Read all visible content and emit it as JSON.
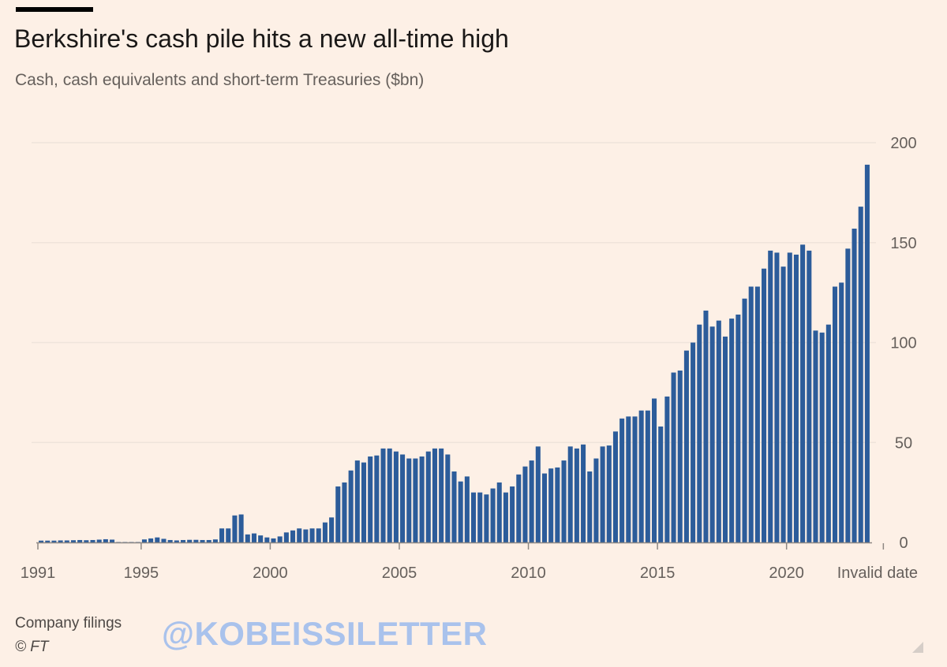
{
  "title": "Berkshire's cash pile hits a new all-time high",
  "subtitle": "Cash, cash equivalents and short-term Treasuries ($bn)",
  "footer": {
    "source": "Company filings",
    "credit": "© FT"
  },
  "watermark": "@KOBEISSILETTER",
  "colors": {
    "background": "#FDF0E6",
    "bar": "#2C5C9A",
    "grid": "#EFE4DB",
    "text": "#66605C"
  },
  "chart_data": {
    "type": "bar",
    "title": "Berkshire's cash pile hits a new all-time high",
    "subtitle": "Cash, cash equivalents and short-term Treasuries ($bn)",
    "xlabel": "",
    "ylabel": "",
    "y_axis_position": "right",
    "ylim": [
      0,
      200
    ],
    "yticks": [
      0,
      50,
      100,
      150,
      200
    ],
    "grid": true,
    "x_start": 1991,
    "x_step": 0.25,
    "x_ticks": [
      {
        "x": 1991,
        "label": "1991"
      },
      {
        "x": 1995,
        "label": "1995"
      },
      {
        "x": 2000,
        "label": "2000"
      },
      {
        "x": 2005,
        "label": "2005"
      },
      {
        "x": 2010,
        "label": "2010"
      },
      {
        "x": 2015,
        "label": "2015"
      },
      {
        "x": 2020,
        "label": "2020"
      },
      {
        "x": 2023.75,
        "label": "Invalid date"
      }
    ],
    "series": [
      {
        "name": "Cash, cash equivalents and short-term Treasuries ($bn)",
        "values": [
          0.9,
          0.9,
          0.9,
          1.0,
          1.0,
          1.1,
          1.2,
          1.1,
          1.2,
          1.4,
          1.6,
          1.4,
          0.2,
          0.2,
          0.2,
          0.2,
          1.5,
          2.0,
          2.5,
          1.8,
          1.2,
          1.0,
          1.2,
          1.3,
          1.3,
          1.2,
          1.2,
          1.5,
          7.0,
          7.0,
          13.5,
          14.0,
          4.0,
          4.5,
          3.5,
          2.5,
          2.0,
          3.0,
          5.0,
          6.0,
          7.0,
          6.5,
          7.0,
          7.0,
          10.0,
          12.5,
          28.0,
          30.0,
          36.0,
          41.0,
          40.0,
          43.0,
          43.5,
          47.0,
          47.0,
          45.5,
          44.0,
          42.0,
          42.0,
          43.0,
          45.5,
          47.0,
          47.0,
          44.0,
          35.5,
          30.5,
          33.0,
          25.0,
          25.0,
          24.0,
          27.0,
          30.0,
          25.0,
          28.0,
          34.0,
          38.0,
          41.0,
          48.0,
          34.5,
          37.0,
          37.5,
          41.0,
          48.0,
          47.0,
          49.0,
          35.5,
          42.0,
          48.0,
          48.5,
          55.5,
          62.0,
          63.0,
          63.0,
          66.0,
          66.0,
          72.0,
          58.0,
          73.0,
          85.0,
          86.0,
          96.0,
          100.0,
          109.0,
          116.0,
          108.0,
          111.0,
          103.0,
          112.0,
          114.0,
          122.0,
          128.0,
          128.0,
          137.0,
          146.0,
          145.0,
          138.0,
          145.0,
          144.0,
          149.0,
          146.0,
          106.0,
          105.0,
          109.0,
          128.0,
          130.0,
          147.0,
          157.0,
          168.0,
          189.0
        ]
      }
    ]
  }
}
